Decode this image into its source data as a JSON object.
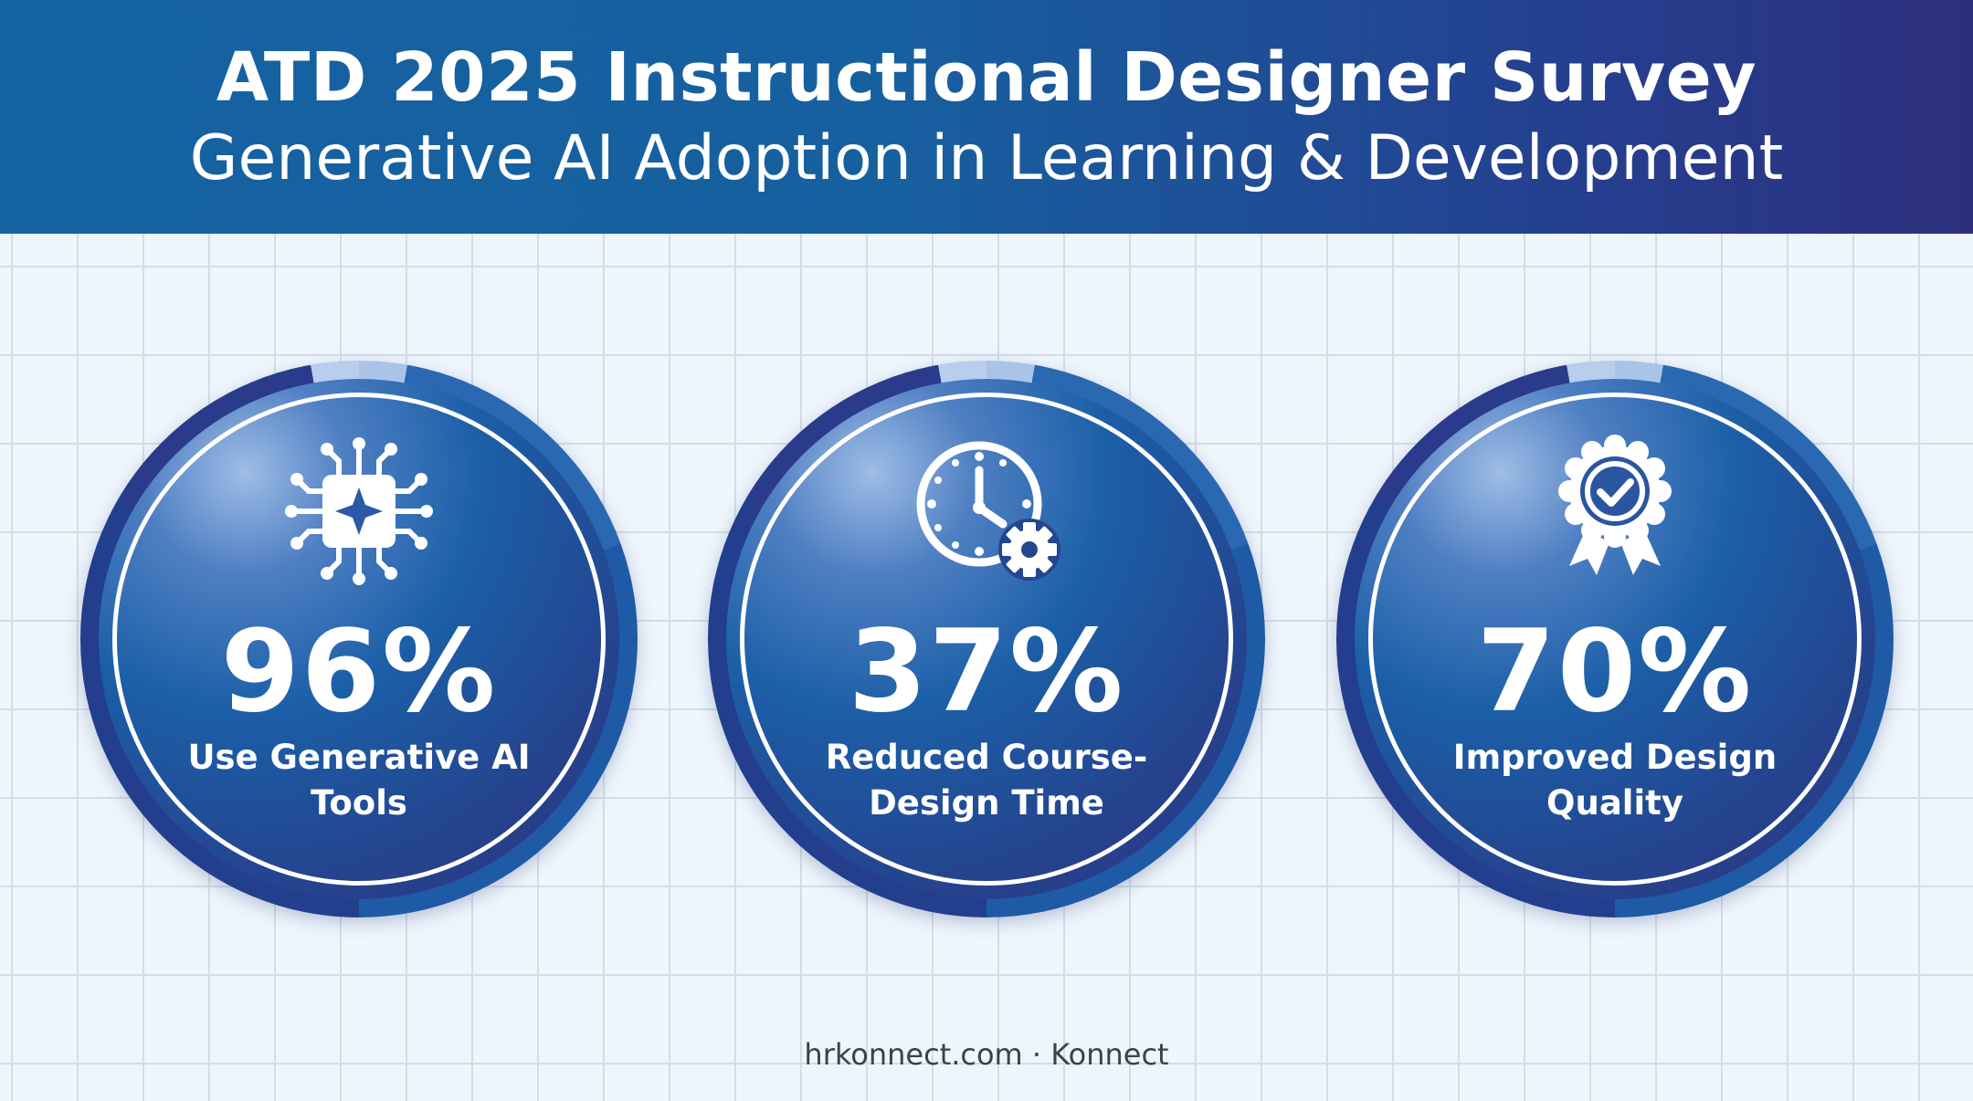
{
  "header": {
    "title": "ATD 2025 Instructional Designer Survey",
    "subtitle": "Generative AI Adoption in Learning & Development"
  },
  "stats": [
    {
      "value": "96%",
      "label": "Use Generative AI Tools",
      "icon": "ai-chip-icon"
    },
    {
      "value": "37%",
      "label": "Reduced Course-Design Time",
      "icon": "clock-gear-icon"
    },
    {
      "value": "70%",
      "label": "Improved Design Quality",
      "icon": "award-badge-icon"
    }
  ],
  "footer": {
    "text": "hrkonnect.com · Konnect"
  },
  "colors": {
    "header_start": "#1562a2",
    "header_end": "#2d2f7e",
    "circle_light": "#9fbde6",
    "circle_dark": "#2e327f",
    "text_on_dark": "#ffffff",
    "background": "#eef5fc"
  }
}
